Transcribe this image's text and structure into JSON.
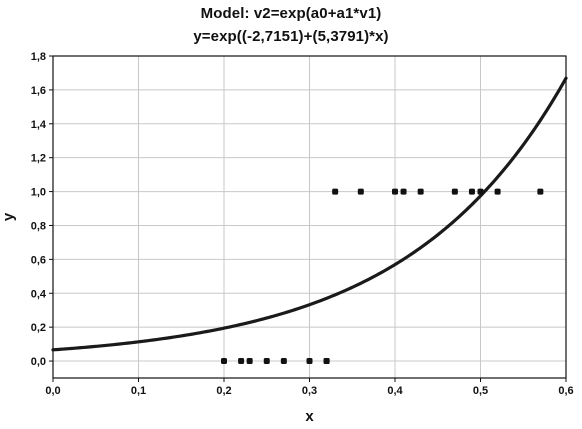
{
  "chart_data": {
    "type": "scatter",
    "title": "Model: v2=exp(a0+a1*v1)",
    "subtitle": "y=exp((-2,7151)+(5,3791)*x)",
    "xlabel": "x",
    "ylabel": "y",
    "xlim": [
      0.0,
      0.6
    ],
    "ylim": [
      -0.1,
      1.8
    ],
    "xticks": [
      "0,0",
      "0,1",
      "0,2",
      "0,3",
      "0,4",
      "0,5",
      "0,6"
    ],
    "yticks": [
      "0,0",
      "0,2",
      "0,4",
      "0,6",
      "0,8",
      "1,0",
      "1,2",
      "1,4",
      "1,6",
      "1,8"
    ],
    "grid": true,
    "series": [
      {
        "type": "scatter",
        "x": [
          0.2,
          0.22,
          0.23,
          0.25,
          0.27,
          0.3,
          0.32,
          0.32,
          0.33,
          0.36,
          0.4,
          0.41,
          0.43,
          0.47,
          0.49,
          0.5,
          0.52,
          0.57
        ],
        "y": [
          0,
          0,
          0,
          0,
          0,
          0,
          0,
          0,
          1,
          1,
          1,
          1,
          1,
          1,
          1,
          1,
          1,
          1
        ]
      },
      {
        "type": "line",
        "equation": "y=exp((-2,7151)+(5,3791)*x)",
        "a0": -2.7151,
        "a1": 5.3791,
        "x_range": [
          0.0,
          0.6
        ]
      }
    ],
    "colors": {
      "points": "#111111",
      "curve": "#1a1a1a",
      "grid": "#c8c8c8",
      "axes": "#111111"
    }
  }
}
